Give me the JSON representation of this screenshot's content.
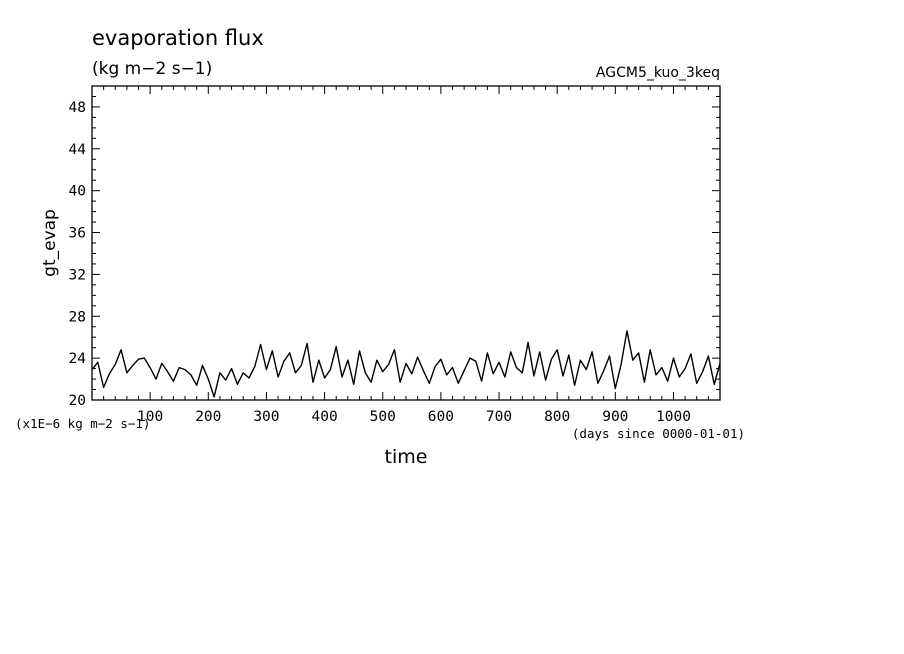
{
  "chart_data": {
    "type": "line",
    "title": "evaporation flux",
    "subtitle": "(kg m−2 s−1)",
    "experiment": "AGCM5_kuo_3keq",
    "ylabel": "gt_evap",
    "xlabel": "time",
    "y_unit_note": "(x1E−6 kg m−2 s−1)",
    "x_unit_note": "(days since 0000-01-01)",
    "xlim": [
      0,
      1080
    ],
    "ylim": [
      20,
      50
    ],
    "x_ticks": [
      100,
      200,
      300,
      400,
      500,
      600,
      700,
      800,
      900,
      1000
    ],
    "x_tick_labels": [
      "100",
      "200",
      "300",
      "400",
      "500",
      "600",
      "700",
      "800",
      "900",
      "1000"
    ],
    "y_ticks": [
      20,
      24,
      28,
      32,
      36,
      40,
      44,
      48
    ],
    "y_tick_labels": [
      "20",
      "24",
      "28",
      "32",
      "36",
      "40",
      "44",
      "48"
    ],
    "grid": false,
    "series": [
      {
        "color": "#000000",
        "x": [
          0,
          10,
          20,
          30,
          40,
          50,
          60,
          70,
          80,
          90,
          100,
          110,
          120,
          130,
          140,
          150,
          160,
          170,
          180,
          190,
          200,
          210,
          220,
          230,
          240,
          250,
          260,
          270,
          280,
          290,
          300,
          310,
          320,
          330,
          340,
          350,
          360,
          370,
          380,
          390,
          400,
          410,
          420,
          430,
          440,
          450,
          460,
          470,
          480,
          490,
          500,
          510,
          520,
          530,
          540,
          550,
          560,
          570,
          580,
          590,
          600,
          610,
          620,
          630,
          640,
          650,
          660,
          670,
          680,
          690,
          700,
          710,
          720,
          730,
          740,
          750,
          760,
          770,
          780,
          790,
          800,
          810,
          820,
          830,
          840,
          850,
          860,
          870,
          880,
          890,
          900,
          910,
          920,
          930,
          940,
          950,
          960,
          970,
          980,
          990,
          1000,
          1010,
          1020,
          1030,
          1040,
          1050,
          1060,
          1070,
          1080
        ],
        "values": [
          22.9,
          23.6,
          21.2,
          22.5,
          23.4,
          24.8,
          22.6,
          23.3,
          23.9,
          24.0,
          23.1,
          22.0,
          23.5,
          22.7,
          21.8,
          23.1,
          22.9,
          22.4,
          21.4,
          23.3,
          22.0,
          20.3,
          22.6,
          21.9,
          23.0,
          21.5,
          22.6,
          22.1,
          23.2,
          25.3,
          22.9,
          24.7,
          22.2,
          23.7,
          24.5,
          22.6,
          23.3,
          25.4,
          21.7,
          23.8,
          22.1,
          22.9,
          25.1,
          22.2,
          23.8,
          21.5,
          24.7,
          22.6,
          21.7,
          23.8,
          22.7,
          23.4,
          24.8,
          21.7,
          23.5,
          22.5,
          24.1,
          22.8,
          21.6,
          23.2,
          23.9,
          22.4,
          23.1,
          21.6,
          22.8,
          24.0,
          23.7,
          21.8,
          24.5,
          22.5,
          23.6,
          22.2,
          24.6,
          23.1,
          22.6,
          25.5,
          22.3,
          24.6,
          21.9,
          23.9,
          24.8,
          22.3,
          24.3,
          21.4,
          23.8,
          22.9,
          24.6,
          21.6,
          22.8,
          24.2,
          21.1,
          23.4,
          26.6,
          23.8,
          24.5,
          21.7,
          24.8,
          22.4,
          23.1,
          21.8,
          24.0,
          22.2,
          23.0,
          24.4,
          21.6,
          22.7,
          24.2,
          21.5,
          23.5
        ]
      }
    ]
  }
}
